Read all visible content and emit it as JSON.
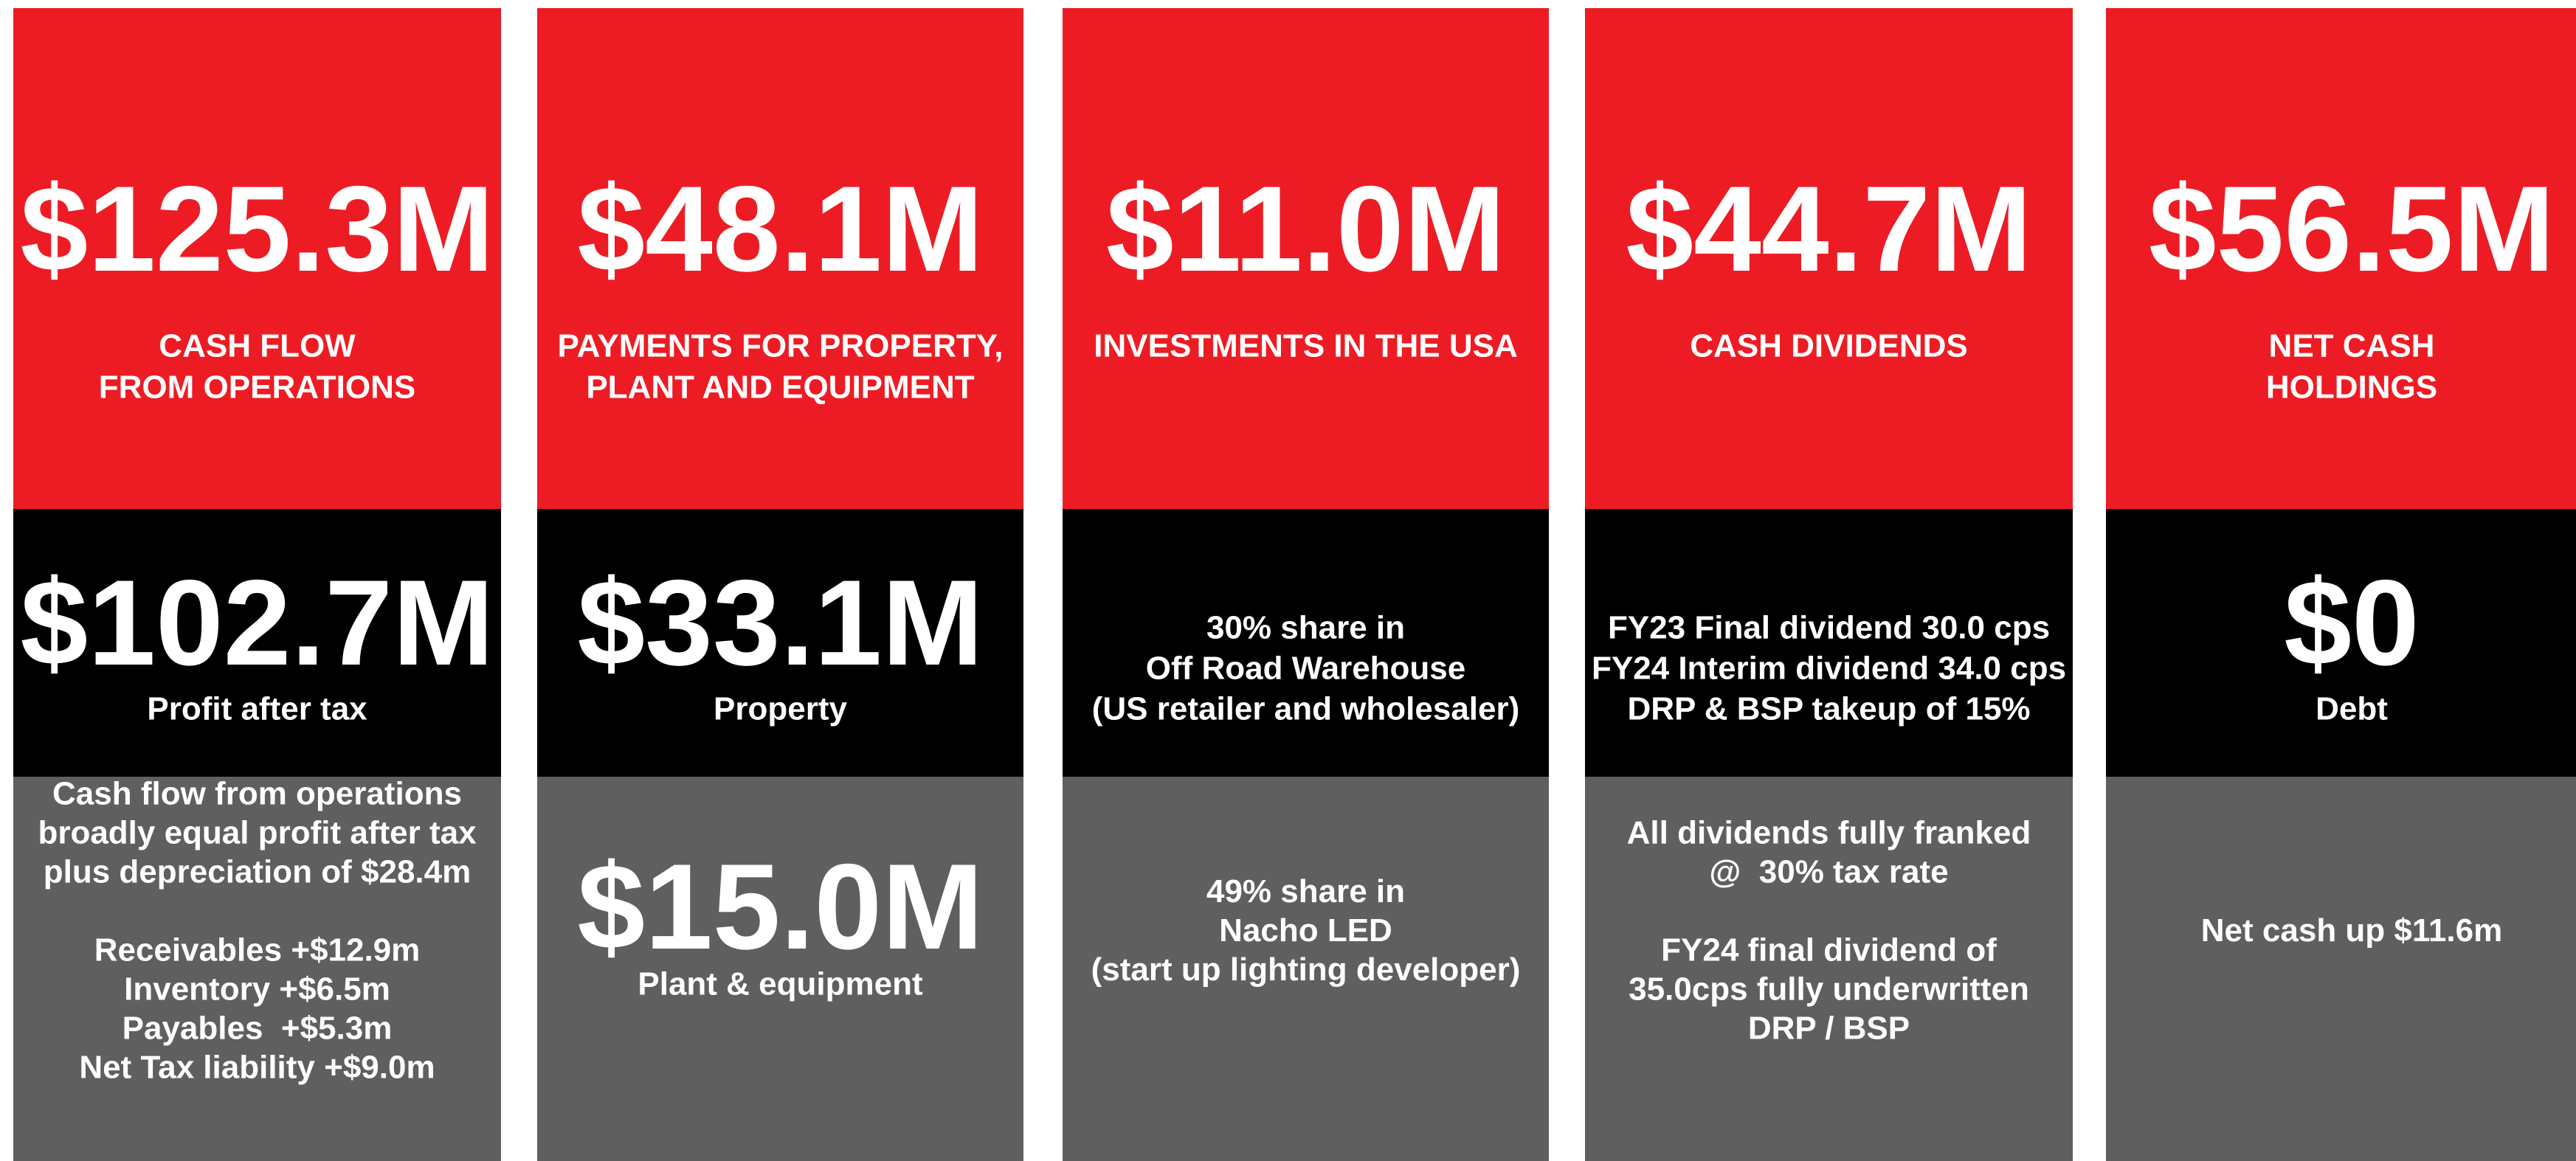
{
  "columns": [
    {
      "top": {
        "value": "$125.3M",
        "label": [
          "CASH FLOW",
          "FROM OPERATIONS"
        ]
      },
      "middle": {
        "value": "$102.7M",
        "label": [
          "Profit after tax"
        ]
      },
      "bottom": {
        "paragraphs": [
          [
            "Cash flow from operations",
            "broadly equal profit after tax",
            "plus depreciation of $28.4m"
          ],
          [
            "Receivables +$12.9m",
            "Inventory +$6.5m",
            "Payables  +$5.3m",
            "Net Tax liability +$9.0m"
          ]
        ]
      }
    },
    {
      "top": {
        "value": "$48.1M",
        "label": [
          "PAYMENTS FOR PROPERTY,",
          "PLANT AND EQUIPMENT"
        ]
      },
      "middle": {
        "value": "$33.1M",
        "label": [
          "Property"
        ]
      },
      "bottom": {
        "value": "$15.0M",
        "paragraphs": [
          [
            "Plant & equipment"
          ]
        ]
      }
    },
    {
      "top": {
        "value": "$11.0M",
        "label": [
          "INVESTMENTS IN THE USA"
        ]
      },
      "middle": {
        "label": [
          "30% share in",
          "Off Road Warehouse",
          "(US retailer and wholesaler)"
        ]
      },
      "bottom": {
        "paragraphs": [
          [
            "49% share in",
            "Nacho LED",
            "(start up lighting developer)"
          ]
        ]
      }
    },
    {
      "top": {
        "value": "$44.7M",
        "label": [
          "CASH DIVIDENDS"
        ]
      },
      "middle": {
        "label": [
          "FY23 Final dividend 30.0 cps",
          "FY24 Interim dividend 34.0 cps",
          "DRP & BSP takeup of 15%"
        ]
      },
      "bottom": {
        "paragraphs": [
          [
            "All dividends fully franked",
            "@  30% tax rate"
          ],
          [
            "FY24 final dividend of",
            "35.0cps fully underwritten",
            "DRP / BSP"
          ]
        ]
      }
    },
    {
      "top": {
        "value": "$56.5M",
        "label": [
          "NET CASH",
          "HOLDINGS"
        ]
      },
      "middle": {
        "value": "$0",
        "label": [
          "Debt"
        ]
      },
      "bottom": {
        "paragraphs": [
          [
            "Net cash up $11.6m"
          ]
        ]
      }
    }
  ]
}
